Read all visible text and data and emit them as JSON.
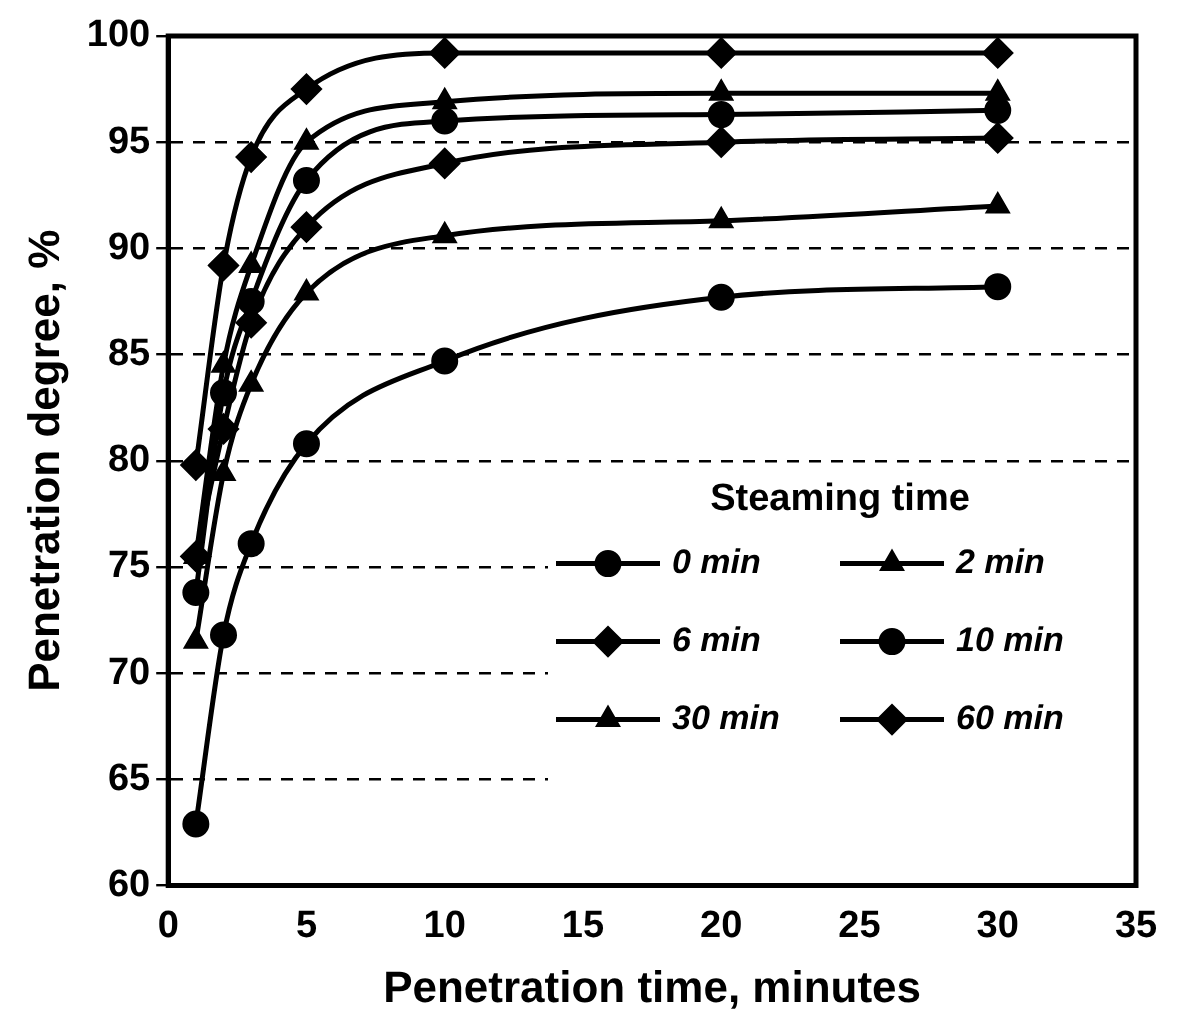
{
  "chart_data": {
    "type": "line",
    "xlabel": "Penetration time, minutes",
    "ylabel": "Penetration degree, %",
    "legend_title": "Steaming time",
    "x": [
      1,
      2,
      3,
      5,
      10,
      20,
      30
    ],
    "series": [
      {
        "name": "0 min",
        "color": "#000000",
        "marker": "circle",
        "values": [
          62.9,
          71.8,
          76.1,
          80.8,
          84.7,
          87.7,
          88.2
        ]
      },
      {
        "name": "2 min",
        "color": "#000000",
        "marker": "triangle",
        "values": [
          71.5,
          79.4,
          83.6,
          87.9,
          90.6,
          91.3,
          92.0
        ]
      },
      {
        "name": "6 min",
        "color": "#000000",
        "marker": "diamond",
        "values": [
          75.5,
          81.5,
          86.5,
          91.0,
          94.0,
          95.0,
          95.2
        ]
      },
      {
        "name": "10 min",
        "color": "#000000",
        "marker": "circle",
        "values": [
          73.8,
          83.2,
          87.5,
          93.2,
          96.0,
          96.3,
          96.5
        ]
      },
      {
        "name": "30 min",
        "color": "#000000",
        "marker": "triangle",
        "values": [
          75.5,
          84.5,
          89.2,
          95.0,
          96.9,
          97.3,
          97.3
        ]
      },
      {
        "name": "60 min",
        "color": "#000000",
        "marker": "diamond",
        "values": [
          79.8,
          89.2,
          94.3,
          97.5,
          99.2,
          99.2,
          99.2
        ]
      }
    ],
    "xlim": [
      0,
      35
    ],
    "xticks": [
      0,
      5,
      10,
      15,
      20,
      25,
      30,
      35
    ],
    "ylim": [
      60,
      100
    ],
    "yticks": [
      60,
      65,
      70,
      75,
      80,
      85,
      90,
      95,
      100
    ],
    "grid": "y",
    "legend": "bottom right",
    "line_style": "solid"
  }
}
